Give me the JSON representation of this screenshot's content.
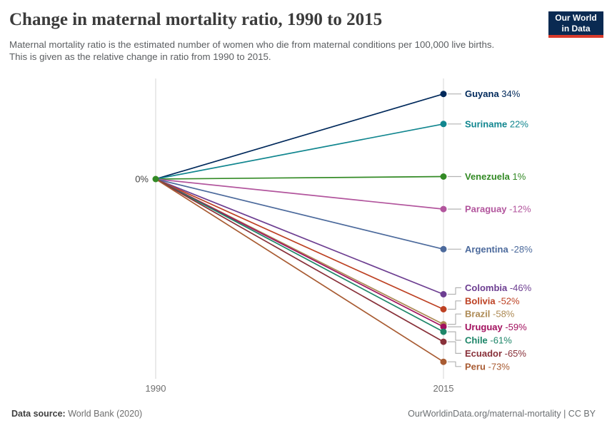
{
  "header": {
    "title": "Change in maternal mortality ratio, 1990 to 2015",
    "subtitle": "Maternal mortality ratio is the estimated number of women who die from maternal conditions per 100,000 live births. This is given as the relative change in ratio from 1990 to 2015.",
    "logo": {
      "line1": "Our World",
      "line2": "in Data",
      "bg": "#0A2A52",
      "accent": "#D93A2B"
    }
  },
  "chart_data": {
    "type": "line",
    "subtype": "slope-chart",
    "x": [
      1990,
      2015
    ],
    "x_labels": [
      "1990",
      "2015"
    ],
    "baseline_label": "0%",
    "baseline_value": 0,
    "unit": "%",
    "zero_dot_color": "#338A25",
    "axis_color": "#d4d4d4",
    "connector_color": "#b3b3b3",
    "series": [
      {
        "name": "Guyana",
        "values": [
          0,
          34
        ],
        "label": "34%",
        "color": "#00295B"
      },
      {
        "name": "Suriname",
        "values": [
          0,
          22
        ],
        "label": "22%",
        "color": "#11868F"
      },
      {
        "name": "Venezuela",
        "values": [
          0,
          1
        ],
        "label": "1%",
        "color": "#338A25"
      },
      {
        "name": "Paraguay",
        "values": [
          0,
          -12
        ],
        "label": "-12%",
        "color": "#B2559D"
      },
      {
        "name": "Argentina",
        "values": [
          0,
          -28
        ],
        "label": "-28%",
        "color": "#4C6A9C"
      },
      {
        "name": "Colombia",
        "values": [
          0,
          -46
        ],
        "label": "-46%",
        "color": "#6D3E91"
      },
      {
        "name": "Bolivia",
        "values": [
          0,
          -52
        ],
        "label": "-52%",
        "color": "#BD4123"
      },
      {
        "name": "Brazil",
        "values": [
          0,
          -58
        ],
        "label": "-58%",
        "color": "#AD8A54"
      },
      {
        "name": "Uruguay",
        "values": [
          0,
          -59
        ],
        "label": "-59%",
        "color": "#A2105E"
      },
      {
        "name": "Chile",
        "values": [
          0,
          -61
        ],
        "label": "-61%",
        "color": "#1D8568"
      },
      {
        "name": "Ecuador",
        "values": [
          0,
          -65
        ],
        "label": "-65%",
        "color": "#883039"
      },
      {
        "name": "Peru",
        "values": [
          0,
          -73
        ],
        "label": "-73%",
        "color": "#A85B32"
      }
    ]
  },
  "footer": {
    "source_label": "Data source:",
    "source_value": "World Bank (2020)",
    "credit": "OurWorldinData.org/maternal-mortality | CC BY"
  }
}
